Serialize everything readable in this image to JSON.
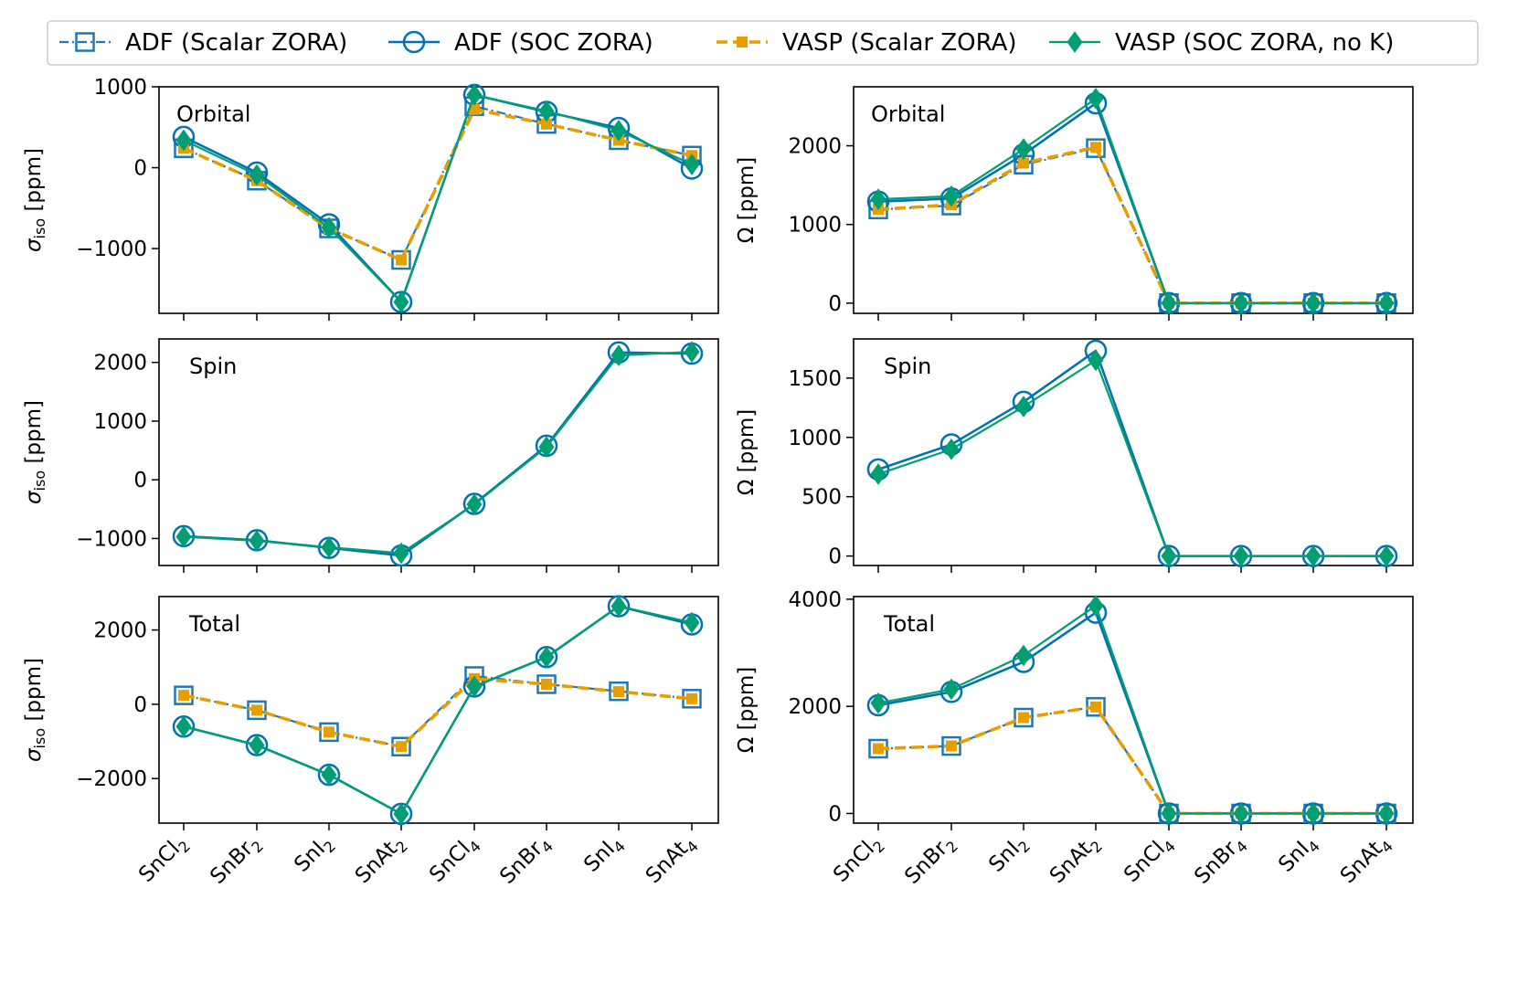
{
  "figure": {
    "categories": [
      {
        "base": "SnCl",
        "sub": "2"
      },
      {
        "base": "SnBr",
        "sub": "2"
      },
      {
        "base": "SnI",
        "sub": "2"
      },
      {
        "base": "SnAt",
        "sub": "2"
      },
      {
        "base": "SnCl",
        "sub": "4"
      },
      {
        "base": "SnBr",
        "sub": "4"
      },
      {
        "base": "SnI",
        "sub": "4"
      },
      {
        "base": "SnAt",
        "sub": "4"
      }
    ],
    "legend": [
      {
        "key": "adf_scalar",
        "label": "ADF (Scalar ZORA)"
      },
      {
        "key": "adf_soc",
        "label": "ADF (SOC ZORA)"
      },
      {
        "key": "vasp_scalar",
        "label": "VASP (Scalar ZORA)"
      },
      {
        "key": "vasp_soc",
        "label": "VASP (SOC ZORA, no K)"
      }
    ],
    "colors": {
      "adf_scalar": "#1f77b4",
      "adf_soc": "#0072b2",
      "vasp_scalar": "#e69f00",
      "vasp_soc": "#009e73"
    },
    "ylabels": {
      "sigma": {
        "symbol": "σ",
        "sub": "iso",
        "unit": " [ppm]"
      },
      "omega": {
        "symbol": "Ω",
        "sub": "",
        "unit": " [ppm]"
      }
    }
  },
  "chart_data": [
    {
      "type": "line",
      "panel": "Orbital",
      "quantity": "sigma",
      "ylim": [
        -1800,
        1000
      ],
      "yticks": [
        1000,
        0,
        -1000
      ],
      "series": [
        {
          "key": "adf_scalar",
          "values": [
            240,
            -160,
            -750,
            -1140,
            760,
            540,
            340,
            150
          ]
        },
        {
          "key": "adf_soc",
          "values": [
            380,
            -60,
            -700,
            -1660,
            900,
            690,
            490,
            -10
          ]
        },
        {
          "key": "vasp_scalar",
          "values": [
            240,
            -160,
            -750,
            -1140,
            720,
            540,
            340,
            150
          ]
        },
        {
          "key": "vasp_soc",
          "values": [
            340,
            -90,
            -740,
            -1660,
            900,
            700,
            460,
            40
          ]
        }
      ]
    },
    {
      "type": "line",
      "panel": "Orbital",
      "quantity": "omega",
      "ylim": [
        -130,
        2750
      ],
      "yticks": [
        2000,
        1000,
        0
      ],
      "series": [
        {
          "key": "adf_scalar",
          "values": [
            1190,
            1240,
            1760,
            1970,
            0,
            0,
            0,
            0
          ]
        },
        {
          "key": "adf_soc",
          "values": [
            1290,
            1330,
            1890,
            2540,
            0,
            0,
            0,
            0
          ]
        },
        {
          "key": "vasp_scalar",
          "values": [
            1190,
            1250,
            1780,
            1980,
            0,
            0,
            0,
            0
          ]
        },
        {
          "key": "vasp_soc",
          "values": [
            1320,
            1360,
            1960,
            2600,
            0,
            0,
            0,
            0
          ]
        }
      ]
    },
    {
      "type": "line",
      "panel": "Spin",
      "quantity": "sigma",
      "ylim": [
        -1460,
        2400
      ],
      "yticks": [
        2000,
        1000,
        0,
        -1000
      ],
      "series": [
        {
          "key": "adf_soc",
          "values": [
            -960,
            -1030,
            -1160,
            -1290,
            -410,
            580,
            2170,
            2150
          ]
        },
        {
          "key": "vasp_soc",
          "values": [
            -970,
            -1040,
            -1150,
            -1250,
            -420,
            560,
            2120,
            2180
          ]
        }
      ]
    },
    {
      "type": "line",
      "panel": "Spin",
      "quantity": "omega",
      "ylim": [
        -80,
        1830
      ],
      "yticks": [
        1500,
        1000,
        500,
        0
      ],
      "series": [
        {
          "key": "adf_soc",
          "values": [
            730,
            940,
            1300,
            1730,
            0,
            0,
            0,
            0
          ]
        },
        {
          "key": "vasp_soc",
          "values": [
            690,
            900,
            1260,
            1650,
            0,
            0,
            0,
            0
          ]
        }
      ]
    },
    {
      "type": "line",
      "panel": "Total",
      "quantity": "sigma",
      "ylim": [
        -3200,
        2900
      ],
      "yticks": [
        2000,
        0,
        -2000
      ],
      "series": [
        {
          "key": "adf_scalar",
          "values": [
            240,
            -160,
            -750,
            -1140,
            760,
            540,
            350,
            150
          ]
        },
        {
          "key": "adf_soc",
          "values": [
            -600,
            -1100,
            -1900,
            -2950,
            480,
            1270,
            2640,
            2150
          ]
        },
        {
          "key": "vasp_scalar",
          "values": [
            240,
            -160,
            -750,
            -1140,
            690,
            540,
            340,
            150
          ]
        },
        {
          "key": "vasp_soc",
          "values": [
            -600,
            -1100,
            -1900,
            -2950,
            480,
            1270,
            2640,
            2200
          ]
        }
      ]
    },
    {
      "type": "line",
      "panel": "Total",
      "quantity": "omega",
      "ylim": [
        -180,
        4050
      ],
      "yticks": [
        4000,
        2000,
        0
      ],
      "series": [
        {
          "key": "adf_scalar",
          "values": [
            1210,
            1260,
            1790,
            1990,
            0,
            0,
            0,
            0
          ]
        },
        {
          "key": "adf_soc",
          "values": [
            2020,
            2270,
            2830,
            3750,
            0,
            0,
            0,
            0
          ]
        },
        {
          "key": "vasp_scalar",
          "values": [
            1210,
            1260,
            1790,
            1990,
            0,
            0,
            0,
            0
          ]
        },
        {
          "key": "vasp_soc",
          "values": [
            2060,
            2320,
            2950,
            3880,
            0,
            0,
            0,
            0
          ]
        }
      ]
    }
  ]
}
